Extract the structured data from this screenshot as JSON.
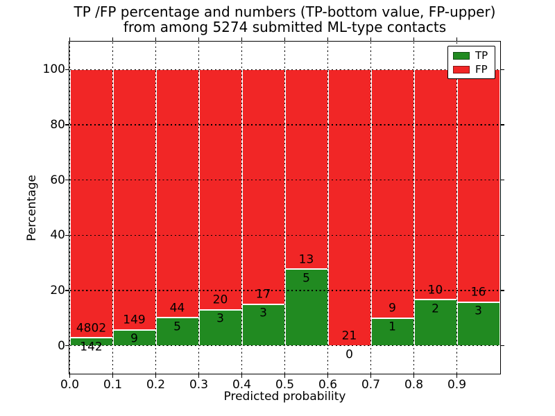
{
  "chart_data": {
    "type": "bar",
    "stacked": true,
    "title_lines": [
      "TP /FP percentage and numbers (TP-bottom value, FP-upper)",
      "from among 5274 submitted ML-type contacts"
    ],
    "xlabel": "Predicted probability",
    "ylabel": "Percentage",
    "xlim": [
      0,
      1.0
    ],
    "ylim": [
      -10,
      110
    ],
    "xticks": [
      "0.0",
      "0.1",
      "0.2",
      "0.3",
      "0.4",
      "0.5",
      "0.6",
      "0.7",
      "0.8",
      "0.9"
    ],
    "yticks": [
      "0",
      "20",
      "40",
      "60",
      "80",
      "100"
    ],
    "grid": true,
    "grid_style": "dotted",
    "legend_position": "upper right",
    "total_contacts": 5274,
    "bin_width": 0.1,
    "series": [
      {
        "name": "TP",
        "color": "#218a21",
        "counts": [
          142,
          9,
          5,
          3,
          3,
          5,
          0,
          1,
          2,
          3
        ],
        "percent": [
          2.87,
          5.7,
          10.2,
          13.04,
          15.0,
          27.78,
          0.0,
          10.0,
          16.67,
          15.79
        ]
      },
      {
        "name": "FP",
        "color": "#f12626",
        "counts": [
          4802,
          149,
          44,
          20,
          17,
          13,
          21,
          9,
          10,
          16
        ],
        "percent": [
          97.13,
          94.3,
          89.8,
          86.96,
          85.0,
          72.22,
          100.0,
          90.0,
          83.33,
          84.21
        ]
      }
    ],
    "bins": [
      {
        "x_start": 0.0,
        "x_end": 0.1,
        "tp_count": 142,
        "fp_count": 4802
      },
      {
        "x_start": 0.1,
        "x_end": 0.2,
        "tp_count": 9,
        "fp_count": 149
      },
      {
        "x_start": 0.2,
        "x_end": 0.3,
        "tp_count": 5,
        "fp_count": 44
      },
      {
        "x_start": 0.3,
        "x_end": 0.4,
        "tp_count": 3,
        "fp_count": 20
      },
      {
        "x_start": 0.4,
        "x_end": 0.5,
        "tp_count": 3,
        "fp_count": 17
      },
      {
        "x_start": 0.5,
        "x_end": 0.6,
        "tp_count": 5,
        "fp_count": 13
      },
      {
        "x_start": 0.6,
        "x_end": 0.7,
        "tp_count": 0,
        "fp_count": 21
      },
      {
        "x_start": 0.7,
        "x_end": 0.8,
        "tp_count": 1,
        "fp_count": 9
      },
      {
        "x_start": 0.8,
        "x_end": 0.9,
        "tp_count": 2,
        "fp_count": 10
      },
      {
        "x_start": 0.9,
        "x_end": 1.0,
        "tp_count": 3,
        "fp_count": 16
      }
    ]
  }
}
